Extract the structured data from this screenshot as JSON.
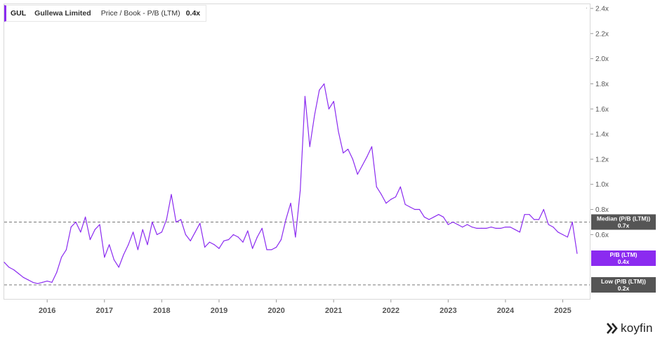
{
  "legend": {
    "ticker": "GUL",
    "company": "Gullewa Limited",
    "metric": "Price / Book - P/B (LTM)",
    "value": "0.4x"
  },
  "colors": {
    "series": "#8b2bf0",
    "current_tag": "#8b2bf0",
    "reference_tag": "#555555",
    "reference_line": "#777777"
  },
  "logo": {
    "text": "koyfin",
    "icon": "koyfin-chevron-logo"
  },
  "tags": {
    "median": {
      "label": "Median (P/B (LTM))",
      "value": "0.7x"
    },
    "current": {
      "label": "P/B (LTM)",
      "value": "0.4x"
    },
    "low": {
      "label": "Low (P/B (LTM))",
      "value": "0.2x"
    }
  },
  "chart_data": {
    "type": "line",
    "series": [
      {
        "name": "P/B (LTM)",
        "x": [
          "2015-04",
          "2015-05",
          "2015-06",
          "2015-07",
          "2015-08",
          "2015-09",
          "2015-10",
          "2015-11",
          "2015-12",
          "2016-01",
          "2016-02",
          "2016-03",
          "2016-04",
          "2016-05",
          "2016-06",
          "2016-07",
          "2016-08",
          "2016-09",
          "2016-10",
          "2016-11",
          "2016-12",
          "2017-01",
          "2017-02",
          "2017-03",
          "2017-04",
          "2017-05",
          "2017-06",
          "2017-07",
          "2017-08",
          "2017-09",
          "2017-10",
          "2017-11",
          "2017-12",
          "2018-01",
          "2018-02",
          "2018-03",
          "2018-04",
          "2018-05",
          "2018-06",
          "2018-07",
          "2018-08",
          "2018-09",
          "2018-10",
          "2018-11",
          "2018-12",
          "2019-01",
          "2019-02",
          "2019-03",
          "2019-04",
          "2019-05",
          "2019-06",
          "2019-07",
          "2019-08",
          "2019-09",
          "2019-10",
          "2019-11",
          "2019-12",
          "2020-01",
          "2020-02",
          "2020-03",
          "2020-04",
          "2020-05",
          "2020-06",
          "2020-07",
          "2020-08",
          "2020-09",
          "2020-10",
          "2020-11",
          "2020-12",
          "2021-01",
          "2021-02",
          "2021-03",
          "2021-04",
          "2021-05",
          "2021-06",
          "2021-07",
          "2021-08",
          "2021-09",
          "2021-10",
          "2021-11",
          "2021-12",
          "2022-01",
          "2022-02",
          "2022-03",
          "2022-04",
          "2022-05",
          "2022-06",
          "2022-07",
          "2022-08",
          "2022-09",
          "2022-10",
          "2022-11",
          "2022-12",
          "2023-01",
          "2023-02",
          "2023-03",
          "2023-04",
          "2023-05",
          "2023-06",
          "2023-07",
          "2023-08",
          "2023-09",
          "2023-10",
          "2023-11",
          "2023-12",
          "2024-01",
          "2024-02",
          "2024-03",
          "2024-04",
          "2024-05",
          "2024-06",
          "2024-07",
          "2024-08",
          "2024-09",
          "2024-10",
          "2024-11",
          "2024-12",
          "2025-01",
          "2025-02",
          "2025-03",
          "2025-04"
        ],
        "values": [
          0.38,
          0.34,
          0.32,
          0.29,
          0.26,
          0.24,
          0.22,
          0.21,
          0.22,
          0.23,
          0.22,
          0.3,
          0.42,
          0.48,
          0.66,
          0.7,
          0.62,
          0.74,
          0.56,
          0.64,
          0.68,
          0.42,
          0.52,
          0.4,
          0.34,
          0.44,
          0.52,
          0.62,
          0.48,
          0.64,
          0.52,
          0.7,
          0.6,
          0.62,
          0.72,
          0.92,
          0.7,
          0.72,
          0.6,
          0.55,
          0.62,
          0.69,
          0.5,
          0.54,
          0.52,
          0.49,
          0.55,
          0.56,
          0.6,
          0.58,
          0.54,
          0.63,
          0.49,
          0.58,
          0.65,
          0.48,
          0.48,
          0.5,
          0.56,
          0.72,
          0.85,
          0.58,
          0.95,
          1.7,
          1.3,
          1.55,
          1.75,
          1.8,
          1.6,
          1.66,
          1.42,
          1.25,
          1.28,
          1.2,
          1.08,
          1.15,
          1.22,
          1.3,
          0.98,
          0.92,
          0.85,
          0.88,
          0.9,
          0.98,
          0.84,
          0.82,
          0.8,
          0.8,
          0.74,
          0.72,
          0.74,
          0.76,
          0.74,
          0.68,
          0.7,
          0.68,
          0.66,
          0.68,
          0.66,
          0.65,
          0.65,
          0.65,
          0.66,
          0.65,
          0.65,
          0.66,
          0.66,
          0.64,
          0.62,
          0.76,
          0.76,
          0.72,
          0.72,
          0.8,
          0.68,
          0.66,
          0.62,
          0.6,
          0.58,
          0.7,
          0.45
        ]
      }
    ],
    "ylim": [
      0.2,
      2.4
    ],
    "yticks": [
      0.6,
      0.8,
      1.0,
      1.2,
      1.4,
      1.6,
      1.8,
      2.0,
      2.2,
      2.4
    ],
    "ytick_labels": [
      "0.6x",
      "0.8x",
      "1.0x",
      "1.2x",
      "1.4x",
      "1.6x",
      "1.8x",
      "2.0x",
      "2.2x",
      "2.4x"
    ],
    "xticks": [
      "2016",
      "2017",
      "2018",
      "2019",
      "2020",
      "2021",
      "2022",
      "2023",
      "2024",
      "2025"
    ],
    "reference_lines": [
      {
        "name": "Median (P/B (LTM))",
        "value": 0.7
      },
      {
        "name": "Low (P/B (LTM))",
        "value": 0.2
      }
    ],
    "grid": false,
    "legend_position": "top-left"
  }
}
